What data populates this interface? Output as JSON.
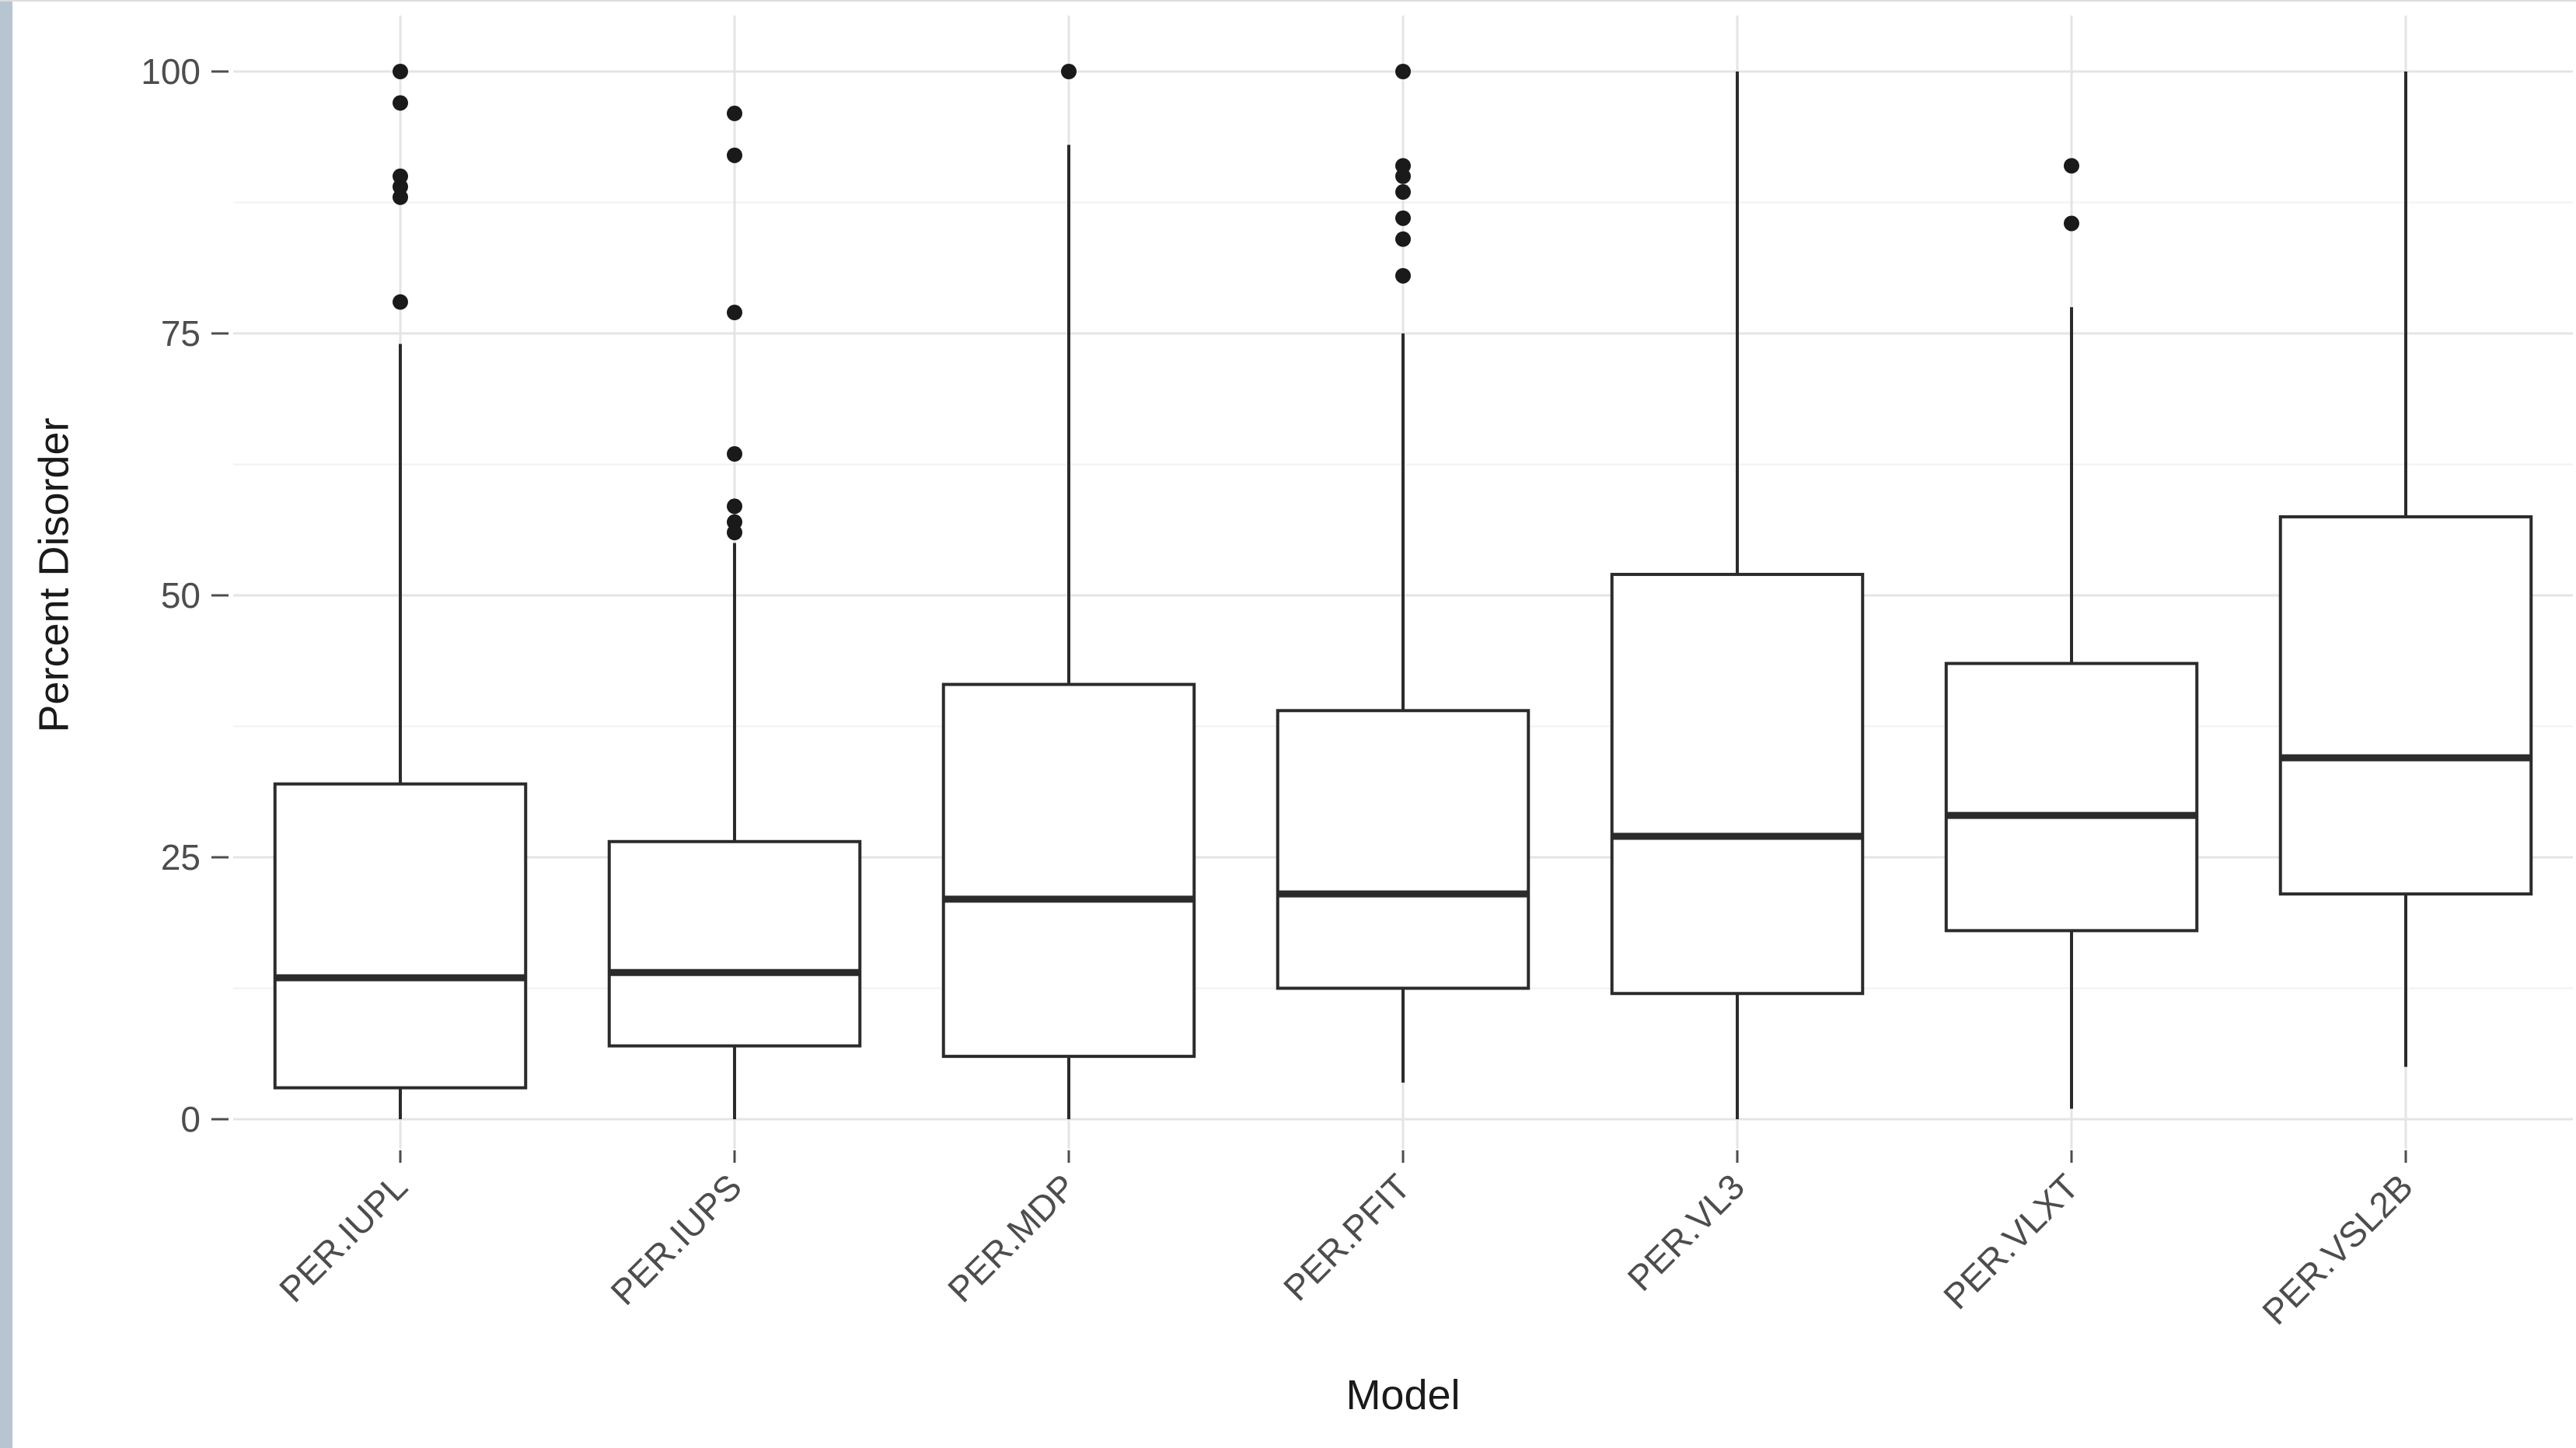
{
  "window": {
    "edge_color": "#b7c5d1"
  },
  "chart_data": {
    "type": "boxplot",
    "title": "",
    "xlabel": "Model",
    "ylabel": "Percent Disorder",
    "ylim": [
      0,
      100
    ],
    "yticks": [
      0,
      25,
      50,
      75,
      100
    ],
    "y_minor_ticks": [
      12.5,
      37.5,
      62.5,
      87.5
    ],
    "grid": true,
    "legend": "none",
    "categories": [
      "PER.IUPL",
      "PER.IUPS",
      "PER.MDP",
      "PER.PFIT",
      "PER.VL3",
      "PER.VLXT",
      "PER.VSL2B"
    ],
    "series": [
      {
        "label": "PER.IUPL",
        "whisker_low": 0,
        "q1": 3,
        "median": 13.5,
        "q3": 32,
        "whisker_high": 74,
        "outliers": [
          78,
          88,
          89,
          90,
          97,
          100
        ]
      },
      {
        "label": "PER.IUPS",
        "whisker_low": 0,
        "q1": 7,
        "median": 14,
        "q3": 26.5,
        "whisker_high": 55,
        "outliers": [
          56,
          57,
          58.5,
          63.5,
          77,
          92,
          96
        ]
      },
      {
        "label": "PER.MDP",
        "whisker_low": 0,
        "q1": 6,
        "median": 21,
        "q3": 41.5,
        "whisker_high": 93,
        "outliers": [
          100
        ]
      },
      {
        "label": "PER.PFIT",
        "whisker_low": 3.5,
        "q1": 12.5,
        "median": 21.5,
        "q3": 39,
        "whisker_high": 75,
        "outliers": [
          80.5,
          84,
          86,
          88.5,
          90,
          91,
          100
        ]
      },
      {
        "label": "PER.VL3",
        "whisker_low": 0,
        "q1": 12,
        "median": 27,
        "q3": 52,
        "whisker_high": 100,
        "outliers": []
      },
      {
        "label": "PER.VLXT",
        "whisker_low": 1,
        "q1": 18,
        "median": 29,
        "q3": 43.5,
        "whisker_high": 77.5,
        "outliers": [
          85.5,
          91
        ]
      },
      {
        "label": "PER.VSL2B",
        "whisker_low": 5,
        "q1": 21.5,
        "median": 34.5,
        "q3": 57.5,
        "whisker_high": 100,
        "outliers": []
      }
    ],
    "style": {
      "box_fill": "#ffffff",
      "box_stroke": "#2b2b2b",
      "grid_major_color": "#e4e4e4",
      "grid_minor_color": "#f2f2f2",
      "tick_label_color": "#4d4d4d",
      "axis_title_color": "#1a1a1a",
      "outlier_color": "#1a1a1a"
    }
  }
}
